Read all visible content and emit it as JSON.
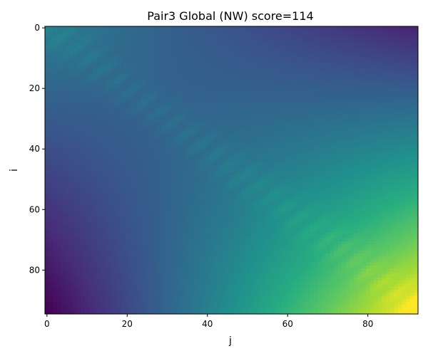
{
  "chart_data": {
    "type": "heatmap",
    "title": "Pair3 Global (NW) score=114",
    "xlabel": "j",
    "ylabel": "i",
    "n_rows": 95,
    "n_cols": 93,
    "x_range": [
      -0.5,
      92.5
    ],
    "y_range": [
      94.5,
      -0.5
    ],
    "y_inverted": true,
    "x_ticks": [
      0,
      20,
      40,
      60,
      80
    ],
    "y_ticks": [
      0,
      20,
      40,
      60,
      80
    ],
    "colormap": "viridis",
    "value_range": [
      -82,
      114
    ],
    "corner_values": {
      "top_left": 0,
      "top_right": -62,
      "bottom_left": -82,
      "bottom_right": 114
    },
    "grid": false,
    "legend": "none"
  }
}
